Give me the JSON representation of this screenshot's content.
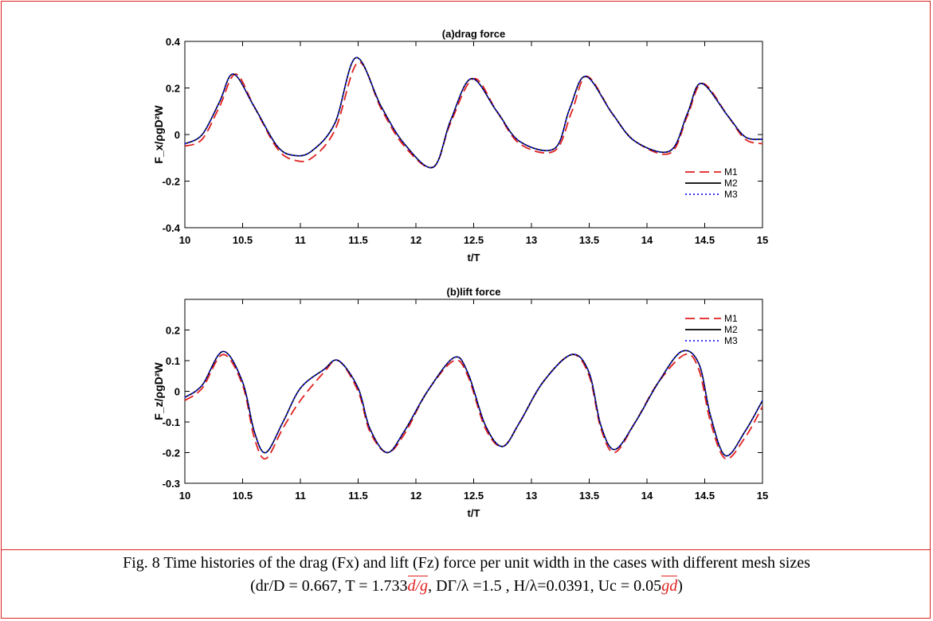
{
  "colors": {
    "frame": "#e02020",
    "M1": "#e02020",
    "M2": "#000000",
    "M3": "#1a1aff"
  },
  "caption": {
    "line1": "Fig. 8 Time histories of the drag (Fx) and lift (Fz) force per unit width in the cases with different mesh sizes",
    "line2_a": "(dr/D = 0.667, T = 1.733",
    "sqrt1": "d/g",
    "line2_b": ",  DΓ/λ  =1.5 , H/λ=0.0391, Uc = 0.05",
    "sqrt2": "gd",
    "line2_c": ")"
  },
  "chart_data": [
    {
      "type": "line",
      "title": "(a)drag force",
      "xlabel": "t/T",
      "ylabel": "F_x/ρgD²W",
      "xlim": [
        10,
        15
      ],
      "ylim": [
        -0.4,
        0.4
      ],
      "xticks": [
        "10",
        "10.5",
        "11",
        "11.5",
        "12",
        "12.5",
        "13",
        "13.5",
        "14",
        "14.5",
        "15"
      ],
      "yticks": [
        "-0.4",
        "-0.2",
        "0",
        "0.2",
        "0.4"
      ],
      "legend": "lower-right",
      "series": [
        {
          "name": "M1",
          "style": "dashed",
          "points": [
            [
              10,
              -0.05
            ],
            [
              10.15,
              -0.02
            ],
            [
              10.3,
              0.12
            ],
            [
              10.44,
              0.26
            ],
            [
              10.6,
              0.12
            ],
            [
              10.8,
              -0.06
            ],
            [
              10.95,
              -0.11
            ],
            [
              11.1,
              -0.1
            ],
            [
              11.3,
              0.02
            ],
            [
              11.5,
              0.31
            ],
            [
              11.7,
              0.11
            ],
            [
              11.9,
              -0.05
            ],
            [
              12.15,
              -0.14
            ],
            [
              12.3,
              0.05
            ],
            [
              12.5,
              0.24
            ],
            [
              12.7,
              0.1
            ],
            [
              12.9,
              -0.04
            ],
            [
              13.2,
              -0.07
            ],
            [
              13.35,
              0.1
            ],
            [
              13.48,
              0.25
            ],
            [
              13.7,
              0.09
            ],
            [
              13.9,
              -0.03
            ],
            [
              14.2,
              -0.08
            ],
            [
              14.35,
              0.08
            ],
            [
              14.48,
              0.22
            ],
            [
              14.7,
              0.08
            ],
            [
              14.85,
              -0.02
            ],
            [
              15,
              -0.04
            ]
          ]
        },
        {
          "name": "M2",
          "style": "solid",
          "points": [
            [
              10,
              -0.04
            ],
            [
              10.15,
              0.0
            ],
            [
              10.3,
              0.14
            ],
            [
              10.42,
              0.26
            ],
            [
              10.6,
              0.12
            ],
            [
              10.8,
              -0.05
            ],
            [
              10.95,
              -0.09
            ],
            [
              11.1,
              -0.07
            ],
            [
              11.3,
              0.05
            ],
            [
              11.48,
              0.33
            ],
            [
              11.7,
              0.12
            ],
            [
              11.9,
              -0.04
            ],
            [
              12.15,
              -0.14
            ],
            [
              12.3,
              0.06
            ],
            [
              12.48,
              0.24
            ],
            [
              12.7,
              0.1
            ],
            [
              12.9,
              -0.03
            ],
            [
              13.2,
              -0.06
            ],
            [
              13.33,
              0.11
            ],
            [
              13.47,
              0.25
            ],
            [
              13.7,
              0.09
            ],
            [
              13.9,
              -0.03
            ],
            [
              14.2,
              -0.07
            ],
            [
              14.35,
              0.09
            ],
            [
              14.47,
              0.22
            ],
            [
              14.7,
              0.08
            ],
            [
              14.85,
              -0.01
            ],
            [
              15,
              -0.02
            ]
          ]
        },
        {
          "name": "M3",
          "style": "dotted",
          "points": [
            [
              10,
              -0.04
            ],
            [
              10.15,
              0.0
            ],
            [
              10.3,
              0.14
            ],
            [
              10.42,
              0.26
            ],
            [
              10.6,
              0.12
            ],
            [
              10.8,
              -0.05
            ],
            [
              10.95,
              -0.09
            ],
            [
              11.1,
              -0.07
            ],
            [
              11.3,
              0.05
            ],
            [
              11.48,
              0.33
            ],
            [
              11.7,
              0.12
            ],
            [
              11.9,
              -0.04
            ],
            [
              12.15,
              -0.14
            ],
            [
              12.3,
              0.06
            ],
            [
              12.48,
              0.24
            ],
            [
              12.7,
              0.1
            ],
            [
              12.9,
              -0.03
            ],
            [
              13.2,
              -0.06
            ],
            [
              13.33,
              0.11
            ],
            [
              13.47,
              0.25
            ],
            [
              13.7,
              0.09
            ],
            [
              13.9,
              -0.03
            ],
            [
              14.2,
              -0.07
            ],
            [
              14.35,
              0.09
            ],
            [
              14.47,
              0.22
            ],
            [
              14.7,
              0.08
            ],
            [
              14.85,
              -0.01
            ],
            [
              15,
              -0.02
            ]
          ]
        }
      ]
    },
    {
      "type": "line",
      "title": "(b)lift force",
      "xlabel": "t/T",
      "ylabel": "F_z/ρgD²W",
      "xlim": [
        10,
        15
      ],
      "ylim": [
        -0.3,
        0.3
      ],
      "xticks": [
        "10",
        "10.5",
        "11",
        "11.5",
        "12",
        "12.5",
        "13",
        "13.5",
        "14",
        "14.5",
        "15"
      ],
      "yticks": [
        "-0.3",
        "-0.2",
        "-0.1",
        "0",
        "0.1",
        "0.2"
      ],
      "legend": "top-right",
      "series": [
        {
          "name": "M1",
          "style": "dashed",
          "points": [
            [
              10,
              -0.03
            ],
            [
              10.15,
              0.01
            ],
            [
              10.33,
              0.12
            ],
            [
              10.5,
              0.02
            ],
            [
              10.6,
              -0.15
            ],
            [
              10.7,
              -0.22
            ],
            [
              10.85,
              -0.12
            ],
            [
              11.0,
              -0.03
            ],
            [
              11.2,
              0.06
            ],
            [
              11.33,
              0.1
            ],
            [
              11.5,
              0.0
            ],
            [
              11.6,
              -0.13
            ],
            [
              11.75,
              -0.2
            ],
            [
              11.9,
              -0.14
            ],
            [
              12.1,
              0.0
            ],
            [
              12.33,
              0.1
            ],
            [
              12.45,
              0.05
            ],
            [
              12.6,
              -0.12
            ],
            [
              12.75,
              -0.18
            ],
            [
              12.9,
              -0.1
            ],
            [
              13.1,
              0.03
            ],
            [
              13.35,
              0.12
            ],
            [
              13.5,
              0.05
            ],
            [
              13.6,
              -0.12
            ],
            [
              13.72,
              -0.2
            ],
            [
              13.9,
              -0.1
            ],
            [
              14.1,
              0.03
            ],
            [
              14.33,
              0.12
            ],
            [
              14.45,
              0.07
            ],
            [
              14.55,
              -0.1
            ],
            [
              14.68,
              -0.22
            ],
            [
              14.85,
              -0.15
            ],
            [
              15,
              -0.05
            ]
          ]
        },
        {
          "name": "M2",
          "style": "solid",
          "points": [
            [
              10,
              -0.02
            ],
            [
              10.15,
              0.02
            ],
            [
              10.33,
              0.13
            ],
            [
              10.5,
              0.03
            ],
            [
              10.6,
              -0.13
            ],
            [
              10.7,
              -0.2
            ],
            [
              10.85,
              -0.1
            ],
            [
              11.0,
              0.01
            ],
            [
              11.2,
              0.07
            ],
            [
              11.33,
              0.1
            ],
            [
              11.5,
              0.01
            ],
            [
              11.6,
              -0.12
            ],
            [
              11.75,
              -0.2
            ],
            [
              11.9,
              -0.13
            ],
            [
              12.1,
              0.0
            ],
            [
              12.33,
              0.11
            ],
            [
              12.45,
              0.06
            ],
            [
              12.6,
              -0.11
            ],
            [
              12.75,
              -0.18
            ],
            [
              12.9,
              -0.1
            ],
            [
              13.1,
              0.03
            ],
            [
              13.35,
              0.12
            ],
            [
              13.5,
              0.06
            ],
            [
              13.6,
              -0.11
            ],
            [
              13.72,
              -0.19
            ],
            [
              13.9,
              -0.1
            ],
            [
              14.1,
              0.03
            ],
            [
              14.3,
              0.13
            ],
            [
              14.45,
              0.09
            ],
            [
              14.55,
              -0.08
            ],
            [
              14.68,
              -0.21
            ],
            [
              14.85,
              -0.13
            ],
            [
              15,
              -0.03
            ]
          ]
        },
        {
          "name": "M3",
          "style": "dotted",
          "points": [
            [
              10,
              -0.02
            ],
            [
              10.15,
              0.02
            ],
            [
              10.33,
              0.13
            ],
            [
              10.5,
              0.03
            ],
            [
              10.6,
              -0.13
            ],
            [
              10.7,
              -0.2
            ],
            [
              10.85,
              -0.1
            ],
            [
              11.0,
              0.01
            ],
            [
              11.2,
              0.07
            ],
            [
              11.33,
              0.1
            ],
            [
              11.5,
              0.01
            ],
            [
              11.6,
              -0.12
            ],
            [
              11.75,
              -0.2
            ],
            [
              11.9,
              -0.13
            ],
            [
              12.1,
              0.0
            ],
            [
              12.33,
              0.11
            ],
            [
              12.45,
              0.06
            ],
            [
              12.6,
              -0.11
            ],
            [
              12.75,
              -0.18
            ],
            [
              12.9,
              -0.1
            ],
            [
              13.1,
              0.03
            ],
            [
              13.35,
              0.12
            ],
            [
              13.5,
              0.06
            ],
            [
              13.6,
              -0.11
            ],
            [
              13.72,
              -0.19
            ],
            [
              13.9,
              -0.1
            ],
            [
              14.1,
              0.03
            ],
            [
              14.3,
              0.13
            ],
            [
              14.45,
              0.09
            ],
            [
              14.55,
              -0.08
            ],
            [
              14.68,
              -0.21
            ],
            [
              14.85,
              -0.13
            ],
            [
              15,
              -0.03
            ]
          ]
        }
      ]
    }
  ]
}
